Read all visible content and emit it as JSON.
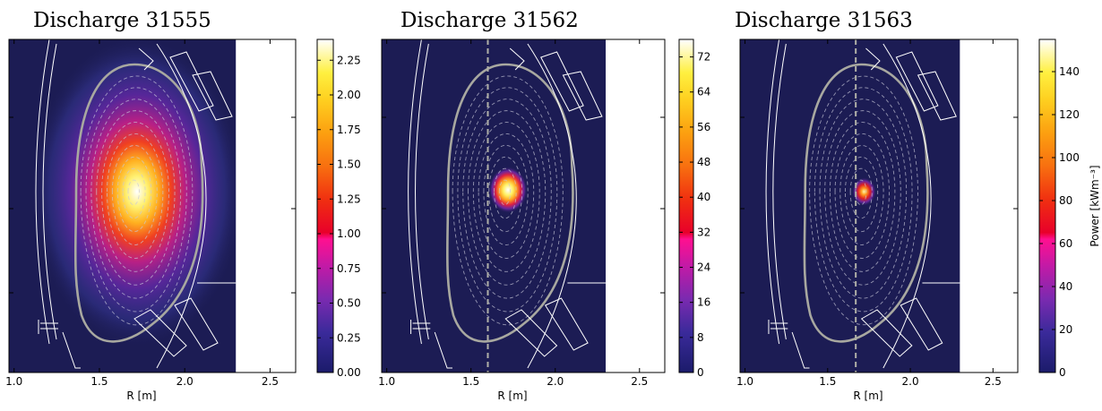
{
  "chart_data": [
    {
      "type": "heatmap",
      "title": "Discharge 31555",
      "xlabel": "R [m]",
      "xlim": [
        0.97,
        2.65
      ],
      "xticks": [
        "1.0",
        "1.5",
        "2.0",
        "2.5"
      ],
      "xtick_values": [
        1.0,
        1.5,
        2.0,
        2.5
      ],
      "data_extent_R": [
        0.97,
        2.3
      ],
      "peak_R": 1.72,
      "vertical_line_R": null,
      "colorbar": {
        "label": "",
        "min": 0.0,
        "max": 2.4,
        "ticks": [
          "0.00",
          "0.25",
          "0.50",
          "0.75",
          "1.00",
          "1.25",
          "1.50",
          "1.75",
          "2.00",
          "2.25"
        ],
        "tick_values": [
          0.0,
          0.25,
          0.5,
          0.75,
          1.0,
          1.25,
          1.5,
          1.75,
          2.0,
          2.25
        ]
      },
      "colormap": "gnuplot-like (dark navy - purple - magenta - red - orange - yellow - white)"
    },
    {
      "type": "heatmap",
      "title": "Discharge 31562",
      "xlabel": "R [m]",
      "xlim": [
        0.97,
        2.65
      ],
      "xticks": [
        "1.0",
        "1.5",
        "2.0",
        "2.5"
      ],
      "xtick_values": [
        1.0,
        1.5,
        2.0,
        2.5
      ],
      "data_extent_R": [
        0.97,
        2.3
      ],
      "peak_R": 1.72,
      "vertical_line_R": 1.6,
      "colorbar": {
        "label": "",
        "min": 0,
        "max": 76,
        "ticks": [
          "0",
          "8",
          "16",
          "24",
          "32",
          "40",
          "48",
          "56",
          "64",
          "72"
        ],
        "tick_values": [
          0,
          8,
          16,
          24,
          32,
          40,
          48,
          56,
          64,
          72
        ]
      },
      "colormap": "gnuplot-like (dark navy - purple - magenta - red - orange - yellow - white)"
    },
    {
      "type": "heatmap",
      "title": "Discharge 31563",
      "xlabel": "R [m]",
      "xlim": [
        0.97,
        2.65
      ],
      "xticks": [
        "1.0",
        "1.5",
        "2.0",
        "2.5"
      ],
      "xtick_values": [
        1.0,
        1.5,
        2.0,
        2.5
      ],
      "data_extent_R": [
        0.97,
        2.3
      ],
      "peak_R": 1.72,
      "vertical_line_R": 1.67,
      "colorbar": {
        "label": "Power [kWm⁻³]",
        "min": 0,
        "max": 155,
        "ticks": [
          "0",
          "20",
          "40",
          "60",
          "80",
          "100",
          "120",
          "140"
        ],
        "tick_values": [
          0,
          20,
          40,
          60,
          80,
          100,
          120,
          140
        ]
      },
      "colormap": "gnuplot-like (dark navy - purple - magenta - red - orange - yellow - white)"
    }
  ],
  "colors": {
    "background_plasma": "#1c1c54",
    "separatrix": "#a8a8a0",
    "flux_contours": "#c8c8d8",
    "vessel": "#ffffff"
  }
}
